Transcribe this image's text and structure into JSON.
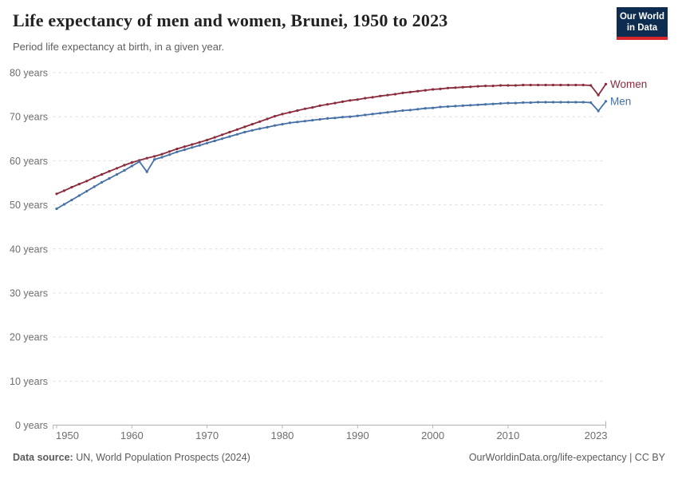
{
  "header": {
    "title": "Life expectancy of men and women, Brunei, 1950 to 2023",
    "subtitle": "Period life expectancy at birth, in a given year.",
    "logo": {
      "line1": "Our World",
      "line2": "in Data"
    }
  },
  "footer": {
    "source_label": "Data source:",
    "source_text": " UN, World Population Prospects (2024)",
    "credit": "OurWorldinData.org/life-expectancy | CC BY"
  },
  "colors": {
    "women": "#8b2b3c",
    "men": "#4670a6",
    "grid": "#dcdcdc",
    "axis": "#b3b3b3",
    "tick_text": "#6e6e6e",
    "title_text": "#222222",
    "subtitle_text": "#5f5f5f",
    "footer_text": "#5b5b5b",
    "logo_bg": "#0d2c4f",
    "logo_red": "#d8262c"
  },
  "chart_data": {
    "type": "line",
    "title": "Life expectancy of men and women, Brunei, 1950 to 2023",
    "subtitle": "Period life expectancy at birth, in a given year.",
    "xlabel": "",
    "ylabel": "years",
    "xlim": [
      1950,
      2023
    ],
    "ylim": [
      0,
      80
    ],
    "grid": "horizontal-dashed",
    "legend": "end-of-line-labels",
    "xticks": [
      1950,
      1960,
      1970,
      1980,
      1990,
      2000,
      2010,
      2023
    ],
    "yticks": [
      0,
      10,
      20,
      30,
      40,
      50,
      60,
      70,
      80
    ],
    "ytick_suffix": " years",
    "years": [
      1950,
      1951,
      1952,
      1953,
      1954,
      1955,
      1956,
      1957,
      1958,
      1959,
      1960,
      1961,
      1962,
      1963,
      1964,
      1965,
      1966,
      1967,
      1968,
      1969,
      1970,
      1971,
      1972,
      1973,
      1974,
      1975,
      1976,
      1977,
      1978,
      1979,
      1980,
      1981,
      1982,
      1983,
      1984,
      1985,
      1986,
      1987,
      1988,
      1989,
      1990,
      1991,
      1992,
      1993,
      1994,
      1995,
      1996,
      1997,
      1998,
      1999,
      2000,
      2001,
      2002,
      2003,
      2004,
      2005,
      2006,
      2007,
      2008,
      2009,
      2010,
      2011,
      2012,
      2013,
      2014,
      2015,
      2016,
      2017,
      2018,
      2019,
      2020,
      2021,
      2022,
      2023
    ],
    "series": [
      {
        "name": "Women",
        "color": "#8b2b3c",
        "values": [
          52.5,
          53.2,
          54.0,
          54.7,
          55.4,
          56.2,
          56.9,
          57.6,
          58.3,
          59.0,
          59.6,
          60.1,
          60.6,
          61.0,
          61.5,
          62.1,
          62.7,
          63.2,
          63.7,
          64.2,
          64.7,
          65.3,
          65.9,
          66.5,
          67.1,
          67.7,
          68.3,
          68.9,
          69.5,
          70.1,
          70.6,
          71.0,
          71.4,
          71.8,
          72.1,
          72.5,
          72.8,
          73.1,
          73.4,
          73.7,
          73.9,
          74.2,
          74.4,
          74.7,
          74.9,
          75.1,
          75.4,
          75.6,
          75.8,
          76.0,
          76.2,
          76.3,
          76.5,
          76.6,
          76.7,
          76.8,
          76.9,
          77.0,
          77.0,
          77.1,
          77.1,
          77.1,
          77.2,
          77.2,
          77.2,
          77.2,
          77.2,
          77.2,
          77.2,
          77.2,
          77.2,
          77.1,
          74.9,
          77.4
        ]
      },
      {
        "name": "Men",
        "color": "#4670a6",
        "values": [
          49.1,
          50.1,
          51.1,
          52.1,
          53.1,
          54.1,
          55.1,
          56.0,
          56.9,
          57.8,
          58.8,
          59.8,
          57.5,
          60.3,
          60.8,
          61.4,
          62.0,
          62.5,
          63.0,
          63.5,
          64.0,
          64.5,
          65.0,
          65.5,
          66.0,
          66.5,
          66.9,
          67.3,
          67.6,
          68.0,
          68.3,
          68.6,
          68.8,
          69.0,
          69.2,
          69.4,
          69.6,
          69.7,
          69.9,
          70.0,
          70.2,
          70.4,
          70.6,
          70.8,
          71.0,
          71.2,
          71.4,
          71.5,
          71.7,
          71.9,
          72.0,
          72.2,
          72.3,
          72.4,
          72.5,
          72.6,
          72.7,
          72.8,
          72.9,
          73.0,
          73.1,
          73.1,
          73.2,
          73.2,
          73.3,
          73.3,
          73.3,
          73.3,
          73.3,
          73.3,
          73.3,
          73.2,
          71.3,
          73.5
        ]
      }
    ]
  }
}
